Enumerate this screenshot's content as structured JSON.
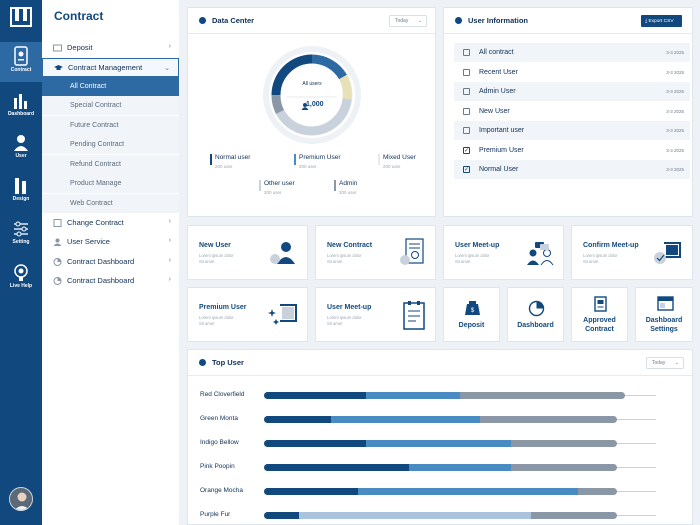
{
  "rail": {
    "items": [
      {
        "label": "Contract",
        "icon": "contract-icon"
      },
      {
        "label": "Dashboard",
        "icon": "bar-chart-icon"
      },
      {
        "label": "User",
        "icon": "user-icon"
      },
      {
        "label": "Design",
        "icon": "design-icon"
      },
      {
        "label": "Setting",
        "icon": "sliders-icon"
      },
      {
        "label": "Live Help",
        "icon": "live-help-icon"
      }
    ]
  },
  "sidebar": {
    "title": "Contract",
    "items": [
      {
        "label": "Deposit",
        "icon": "deposit-icon"
      },
      {
        "label": "Contract Management",
        "icon": "graduation-cap-icon"
      },
      {
        "label": "Change Contract",
        "icon": "document-icon"
      },
      {
        "label": "User Service",
        "icon": "user-icon"
      },
      {
        "label": "Contract Dashboard",
        "icon": "dashboard-icon"
      },
      {
        "label": "Contract Dashboard",
        "icon": "dashboard-icon"
      }
    ],
    "subitems": [
      "All Contract",
      "Special Contract",
      "Future Contract",
      "Pending Contract",
      "Refund Contract",
      "Product Manage",
      "Web Contract"
    ]
  },
  "data_center": {
    "title": "Data Center",
    "filter": "Today",
    "donut_label": "All users",
    "donut_value": "1,000",
    "legend": [
      {
        "label": "Normal user",
        "sub": "200 user",
        "color": "#11497e"
      },
      {
        "label": "Premium User",
        "sub": "200 user",
        "color": "#4a8bc4"
      },
      {
        "label": "Mixed User",
        "sub": "200 user",
        "color": "#e6ebf1"
      },
      {
        "label": "Other user",
        "sub": "200 user",
        "color": "#c9d2dc"
      },
      {
        "label": "Admin",
        "sub": "200 user",
        "color": "#8a97a6"
      }
    ]
  },
  "user_info": {
    "title": "User Information",
    "export_label": "Export CSV",
    "rows": [
      {
        "label": "All contract",
        "date": "3-3 2025",
        "checked": false
      },
      {
        "label": "Recent User",
        "date": "3-3 2025",
        "checked": false
      },
      {
        "label": "Admin User",
        "date": "3-3 2025",
        "checked": false
      },
      {
        "label": "New User",
        "date": "3-3 2025",
        "checked": false
      },
      {
        "label": "Important user",
        "date": "3-3 2025",
        "checked": false
      },
      {
        "label": "Premium User",
        "date": "3-3 2025",
        "checked": true
      },
      {
        "label": "Normal User",
        "date": "3-3 2025",
        "checked": true
      }
    ]
  },
  "tiles": {
    "lorem": "Lorem ipsum dolor",
    "sit": "Sit amet",
    "row1": [
      {
        "title": "New User",
        "icon": "new-user-icon"
      },
      {
        "title": "New Contract",
        "icon": "new-contract-icon"
      },
      {
        "title": "User Meet-up",
        "icon": "meetup-icon"
      },
      {
        "title": "Confirm Meet-up",
        "icon": "confirm-meetup-icon"
      }
    ],
    "row2": [
      {
        "title": "Premium User",
        "icon": "premium-user-icon"
      },
      {
        "title": "User Meet-up",
        "icon": "clipboard-icon"
      }
    ],
    "squares": [
      {
        "title": "Deposit",
        "icon": "deposit-bag-icon"
      },
      {
        "title": "Dashboard",
        "icon": "pie-icon"
      },
      {
        "title": "Approved Contract",
        "icon": "approved-doc-icon"
      },
      {
        "title": "Dashboard Settings",
        "icon": "dashboard-settings-icon"
      }
    ]
  },
  "top_user": {
    "title": "Top User",
    "filter": "Today",
    "rows": [
      {
        "name": "Red Cloverfield",
        "segments": [
          0.26,
          0.24,
          0.42
        ]
      },
      {
        "name": "Green Monta",
        "segments": [
          0.17,
          0.38,
          0.35
        ]
      },
      {
        "name": "Indigo Bellow",
        "segments": [
          0.26,
          0.37,
          0.27
        ]
      },
      {
        "name": "Pink Poopin",
        "segments": [
          0.37,
          0.26,
          0.27
        ]
      },
      {
        "name": "Orange Mocha",
        "segments": [
          0.24,
          0.56,
          0.1
        ]
      },
      {
        "name": "Purple Fur",
        "segments": [
          0.09,
          0.59,
          0.22
        ]
      }
    ]
  },
  "colors": {
    "primary": "#11497e",
    "mid": "#2d6aa3",
    "light": "#4a8bc4",
    "grey": "#8a97a6",
    "pale": "#a9c3dc"
  }
}
